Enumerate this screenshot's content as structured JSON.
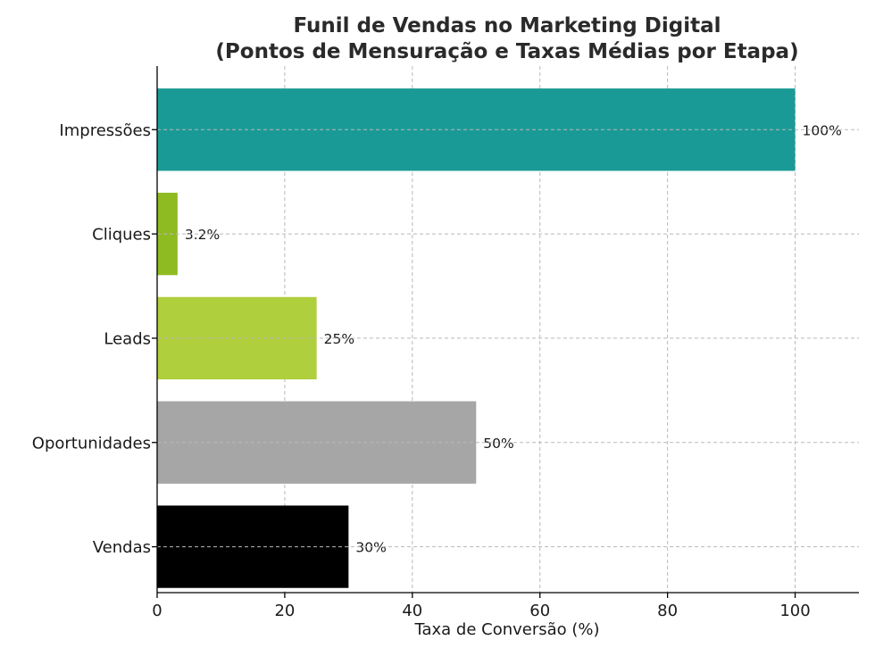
{
  "chart_data": {
    "type": "bar",
    "orientation": "horizontal",
    "title_lines": [
      "Funil de Vendas no Marketing Digital",
      "(Pontos de Mensuração e Taxas Médias por Etapa)"
    ],
    "xlabel": "Taxa de Conversão (%)",
    "ylabel": "",
    "categories": [
      "Impressões",
      "Cliques",
      "Leads",
      "Oportunidades",
      "Vendas"
    ],
    "values": [
      100,
      3.2,
      25,
      50,
      30
    ],
    "value_labels": [
      "100%",
      "3.2%",
      "25%",
      "50%",
      "30%"
    ],
    "colors": [
      "#1a9a96",
      "#8fbb22",
      "#b0cf3c",
      "#a6a6a6",
      "#000000"
    ],
    "xlim": [
      0,
      110
    ],
    "xticks": [
      0,
      20,
      40,
      60,
      80,
      100
    ],
    "grid": true
  }
}
